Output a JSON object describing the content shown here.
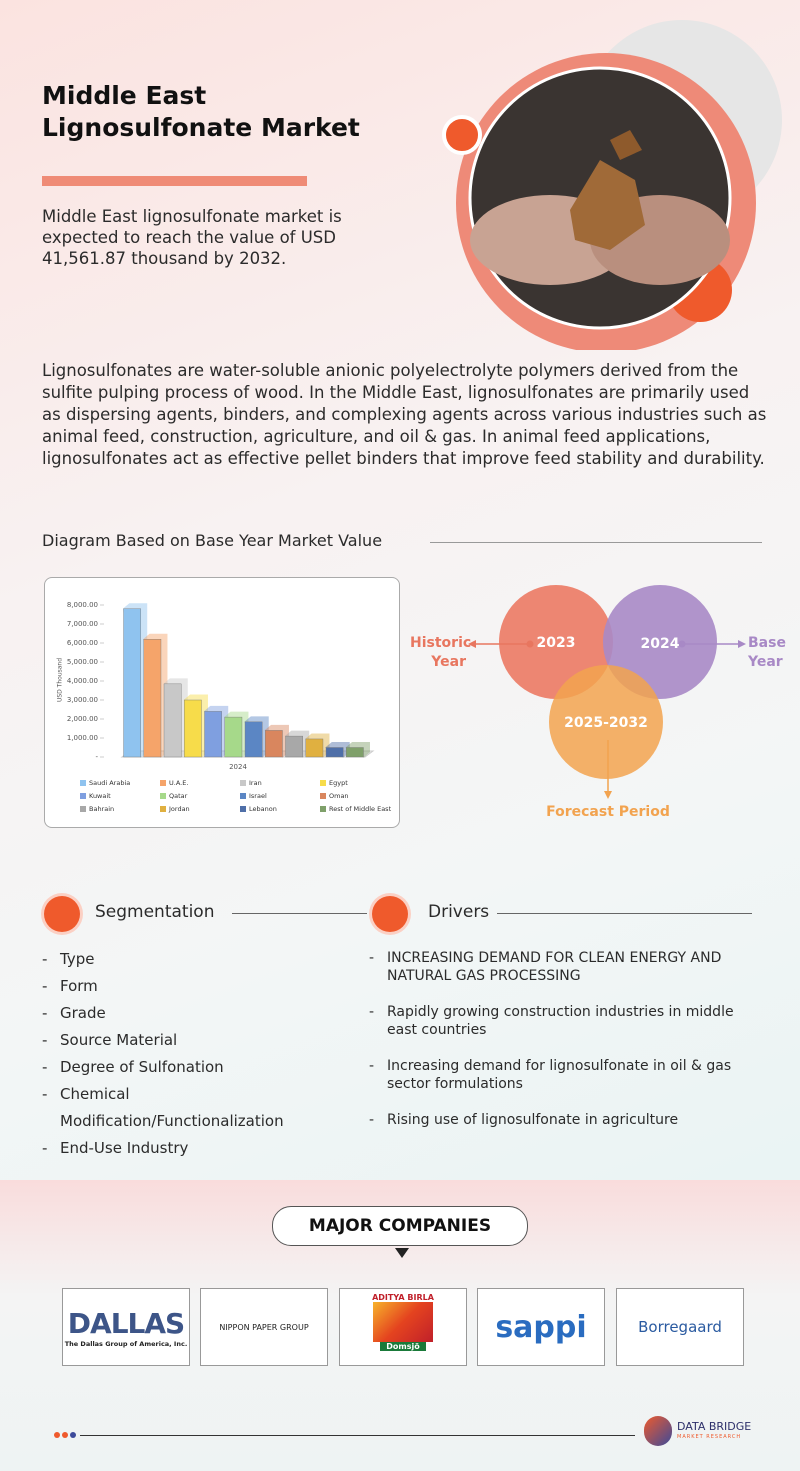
{
  "header": {
    "title": "Middle East Lignosulfonate Market",
    "summary": "Middle East lignosulfonate market is expected to reach the value of USD 41,561.87 thousand by 2032."
  },
  "description": "Lignosulfonates are water-soluble anionic polyelectrolyte polymers derived from the sulfite pulping process of wood. In the Middle East, lignosulfonates are primarily used as dispersing agents, binders, and complexing agents across various industries such as animal feed, construction, agriculture, and oil & gas. In animal feed applications, lignosulfonates act as effective pellet binders that improve feed stability and durability.",
  "diagram_heading": "Diagram Based on Base Year Market Value",
  "chart_data": {
    "type": "bar",
    "y_label": "USD Thousand",
    "x_label": "2024",
    "categories": [
      "Saudi Arabia",
      "U.A.E.",
      "Iran",
      "Egypt",
      "Kuwait",
      "Qatar",
      "Israel",
      "Oman",
      "Bahrain",
      "Jordan",
      "Lebanon",
      "Rest of Middle East"
    ],
    "values": [
      7800,
      6200,
      3850,
      3000,
      2400,
      2100,
      1850,
      1400,
      1100,
      950,
      500,
      500
    ],
    "colors": [
      "#8fc3ef",
      "#f5a46a",
      "#c8c8c8",
      "#f7dc4a",
      "#7f9fe0",
      "#a6d98a",
      "#5b86c4",
      "#d9865e",
      "#a8a8a8",
      "#e0b040",
      "#4f6fa8",
      "#7fa06a"
    ],
    "ylim": [
      0,
      8000
    ],
    "yticks": [
      {
        "value": 0,
        "label": "-"
      },
      {
        "value": 1000,
        "label": "1,000.00"
      },
      {
        "value": 2000,
        "label": "2,000.00"
      },
      {
        "value": 3000,
        "label": "3,000.00"
      },
      {
        "value": 4000,
        "label": "4,000.00"
      },
      {
        "value": 5000,
        "label": "5,000.00"
      },
      {
        "value": 6000,
        "label": "6,000.00"
      },
      {
        "value": 7000,
        "label": "7,000.00"
      },
      {
        "value": 8000,
        "label": "8,000.00"
      }
    ]
  },
  "venn": {
    "historic": "2023",
    "base": "2024",
    "forecast": "2025-2032",
    "historic_label": "Historic Year",
    "base_label": "Base Year",
    "forecast_label": "Forecast Period"
  },
  "segmentation": {
    "title": "Segmentation",
    "items": [
      "Type",
      "Form",
      "Grade",
      "Source Material",
      "Degree of Sulfonation",
      "Chemical Modification/Functionalization",
      "End-Use Industry"
    ]
  },
  "drivers": {
    "title": "Drivers",
    "items": [
      "INCREASING DEMAND FOR CLEAN ENERGY AND NATURAL GAS PROCESSING",
      "Rapidly growing construction industries in middle east countries",
      "Increasing demand for lignosulfonate in oil & gas sector formulations",
      "Rising use of lignosulfonate in agriculture"
    ]
  },
  "companies": {
    "title": "MAJOR COMPANIES",
    "logos": [
      "DALLAS",
      "The Dallas Group of America, Inc.",
      "NIPPON PAPER GROUP",
      "ADITYA BIRLA",
      "Domsjö",
      "sappi",
      "Borregaard"
    ]
  },
  "footer": {
    "brand": "DATA BRIDGE",
    "tagline": "MARKET RESEARCH"
  }
}
